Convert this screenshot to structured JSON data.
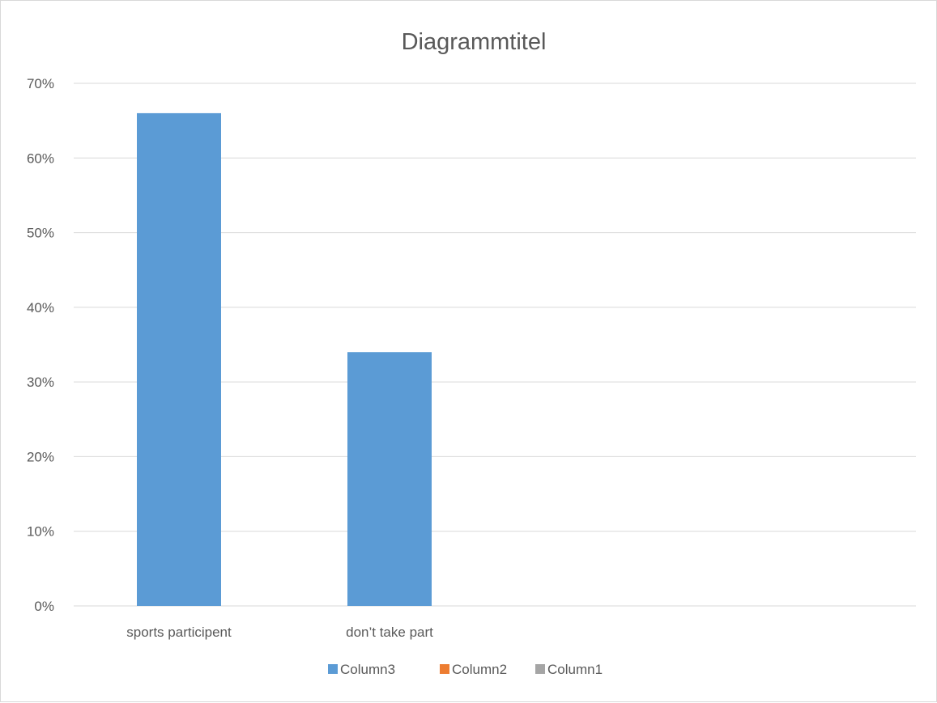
{
  "chart_data": {
    "type": "bar",
    "title": "Diagrammtitel",
    "xlabel": "",
    "ylabel": "",
    "categories": [
      "sports participent",
      "don’t take part",
      "",
      ""
    ],
    "series": [
      {
        "name": "Column3",
        "color": "#5b9bd5",
        "values": [
          0.66,
          0.34,
          null,
          null
        ]
      },
      {
        "name": "Column2",
        "color": "#ed7d31",
        "values": [
          null,
          null,
          null,
          null
        ]
      },
      {
        "name": "Column1",
        "color": "#a5a5a5",
        "values": [
          null,
          null,
          null,
          null
        ]
      }
    ],
    "ylim": [
      0,
      0.7
    ],
    "yticks": [
      "0%",
      "10%",
      "20%",
      "30%",
      "40%",
      "50%",
      "60%",
      "70%"
    ],
    "grid": true,
    "legend_position": "bottom"
  }
}
